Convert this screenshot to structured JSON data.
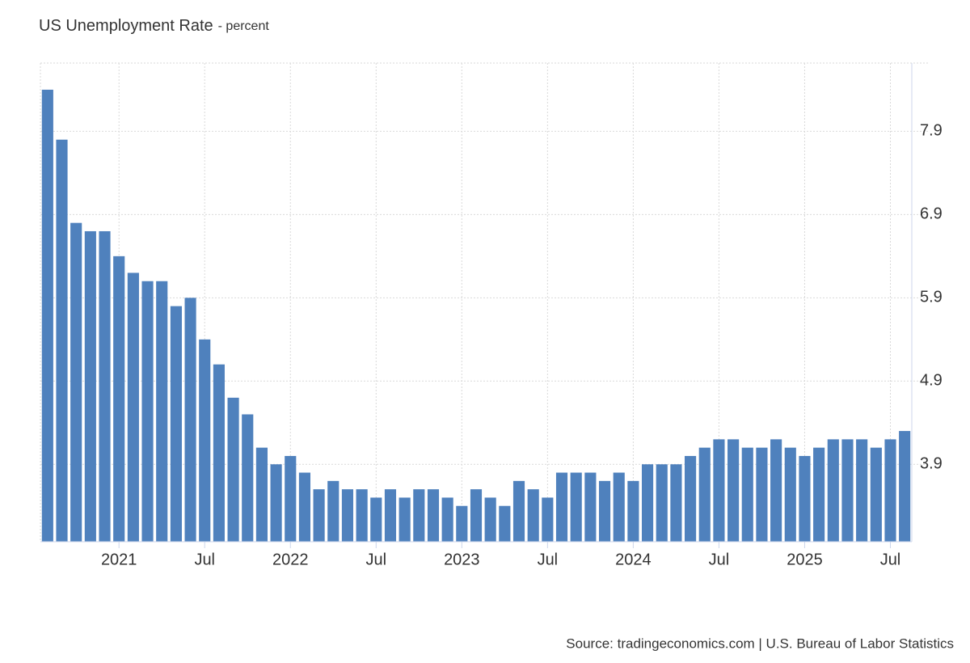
{
  "chart_data": {
    "type": "bar",
    "title": "US Unemployment Rate",
    "subtitle": "- percent",
    "source": "Source: tradingeconomics.com | U.S. Bureau of Labor Statistics",
    "categories": [
      null,
      null,
      null,
      null,
      null,
      "2021",
      null,
      null,
      null,
      null,
      null,
      "Jul",
      null,
      null,
      null,
      null,
      null,
      "2022",
      null,
      null,
      null,
      null,
      null,
      "Jul",
      null,
      null,
      null,
      null,
      null,
      "2023",
      null,
      null,
      null,
      null,
      null,
      "Jul",
      null,
      null,
      null,
      null,
      null,
      "2024",
      null,
      null,
      null,
      null,
      null,
      "Jul",
      null,
      null,
      null,
      null,
      null,
      "2025",
      null,
      null,
      null,
      null,
      null,
      "Jul",
      null
    ],
    "values": [
      8.4,
      7.8,
      6.8,
      6.7,
      6.7,
      6.4,
      6.2,
      6.1,
      6.1,
      5.8,
      5.9,
      5.4,
      5.1,
      4.7,
      4.5,
      4.1,
      3.9,
      4.0,
      3.8,
      3.6,
      3.7,
      3.6,
      3.6,
      3.5,
      3.6,
      3.5,
      3.6,
      3.6,
      3.5,
      3.4,
      3.6,
      3.5,
      3.4,
      3.7,
      3.6,
      3.5,
      3.8,
      3.8,
      3.8,
      3.7,
      3.8,
      3.7,
      3.9,
      3.9,
      3.9,
      4.0,
      4.1,
      4.2,
      4.2,
      4.1,
      4.1,
      4.2,
      4.1,
      4.0,
      4.1,
      4.2,
      4.2,
      4.2,
      4.1,
      4.2,
      4.3
    ],
    "color": "#4f81bd",
    "ylim": [
      2.97,
      8.72
    ],
    "yticks": [
      3.9,
      4.9,
      5.9,
      6.9,
      7.9
    ],
    "grid": true
  }
}
